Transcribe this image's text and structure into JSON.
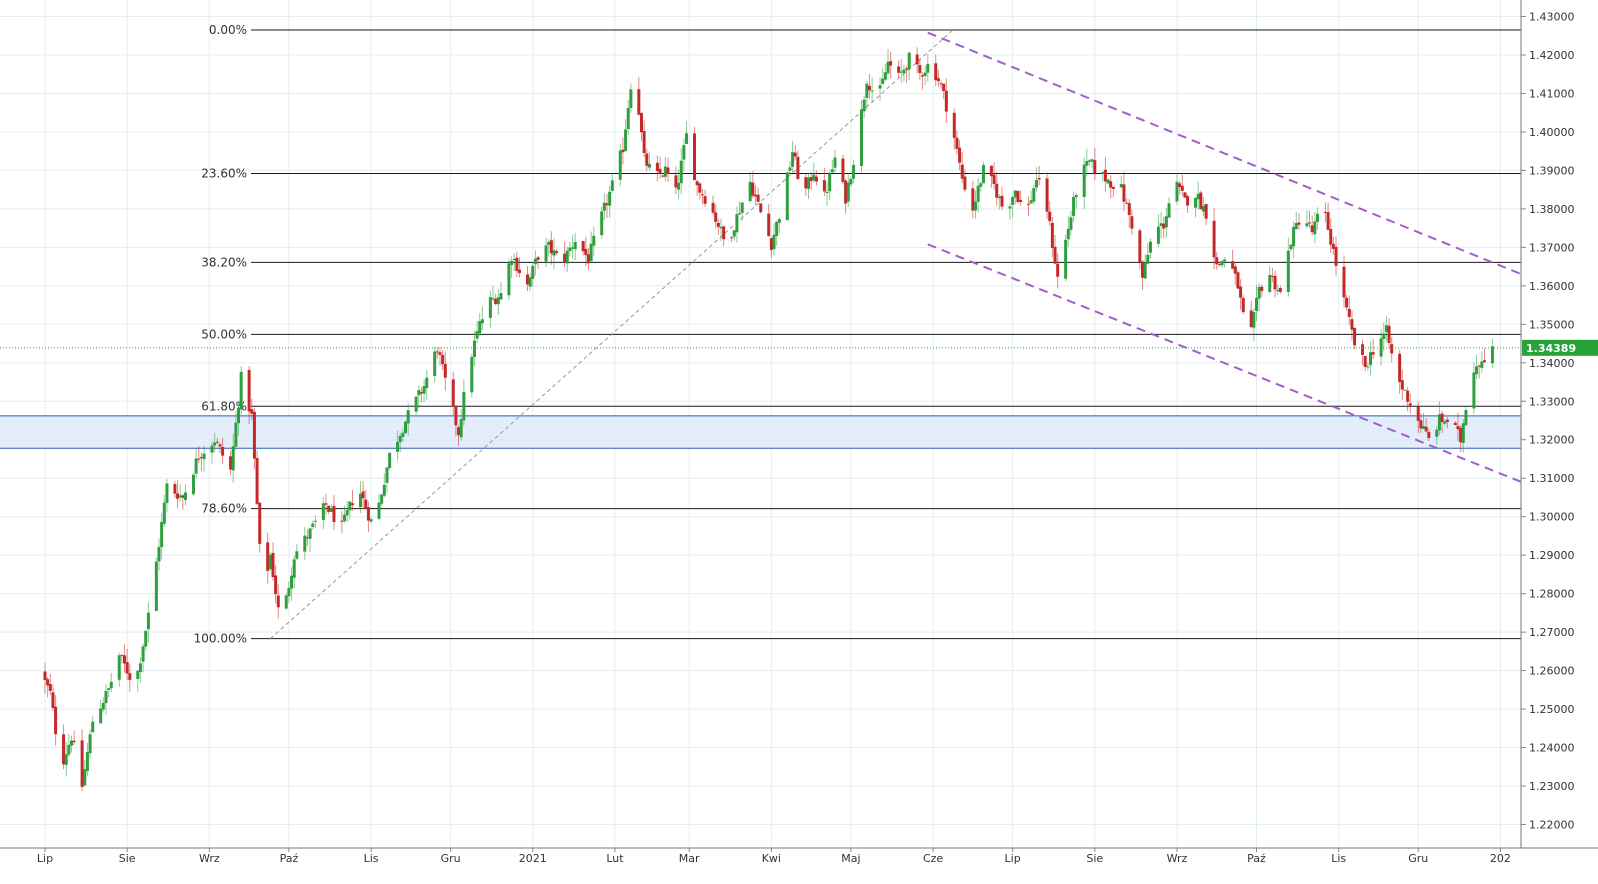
{
  "colors": {
    "up": "#2e9e3e",
    "down": "#c62828",
    "grid": "#e3eef3",
    "fib_line": "#1a1a1a",
    "zone_fill": "#dbe8f8",
    "zone_stroke": "#2a5db0",
    "channel": "#a25fc7",
    "trend_dotted": "#999999",
    "current_price": "#27a33a"
  },
  "chart_data": {
    "type": "candlestick",
    "instrument_quote_label": "1.34389",
    "current_price": 1.34389,
    "ylim": [
      1.2155,
      1.4325
    ],
    "y_ticks": [
      "1.22000",
      "1.23000",
      "1.24000",
      "1.25000",
      "1.26000",
      "1.27000",
      "1.28000",
      "1.29000",
      "1.30000",
      "1.31000",
      "1.32000",
      "1.33000",
      "1.34000",
      "1.35000",
      "1.36000",
      "1.37000",
      "1.38000",
      "1.39000",
      "1.40000",
      "1.41000",
      "1.42000",
      "1.43000"
    ],
    "months": [
      {
        "label": "Lip",
        "day": 0
      },
      {
        "label": "Sie",
        "day": 31
      },
      {
        "label": "Wrz",
        "day": 62
      },
      {
        "label": "Paź",
        "day": 92
      },
      {
        "label": "Lis",
        "day": 123
      },
      {
        "label": "Gru",
        "day": 153
      },
      {
        "label": "2021",
        "day": 184
      },
      {
        "label": "Lut",
        "day": 215
      },
      {
        "label": "Mar",
        "day": 243
      },
      {
        "label": "Kwi",
        "day": 274
      },
      {
        "label": "Maj",
        "day": 304
      },
      {
        "label": "Cze",
        "day": 335
      },
      {
        "label": "Lip",
        "day": 365
      },
      {
        "label": "Sie",
        "day": 396
      },
      {
        "label": "Wrz",
        "day": 427
      },
      {
        "label": "Paź",
        "day": 457
      },
      {
        "label": "Lis",
        "day": 488
      },
      {
        "label": "Gru",
        "day": 518
      },
      {
        "label": "202",
        "day": 549
      }
    ],
    "fib_levels": [
      {
        "label": "0.00%",
        "value": 1.4265
      },
      {
        "label": "23.60%",
        "value": 1.3892
      },
      {
        "label": "38.20%",
        "value": 1.3661
      },
      {
        "label": "50.00%",
        "value": 1.3474
      },
      {
        "label": "61.80%",
        "value": 1.3287
      },
      {
        "label": "78.60%",
        "value": 1.3021
      },
      {
        "label": "100.00%",
        "value": 1.2683
      }
    ],
    "support_zone": [
      1.3178,
      1.3262
    ],
    "channel_upper": {
      "from": [
        333,
        1.4258
      ],
      "to": [
        557,
        1.363
      ]
    },
    "channel_lower": {
      "from": [
        333,
        1.3708
      ],
      "to": [
        557,
        1.309
      ]
    },
    "trend_dotted": {
      "from": [
        85,
        1.2683
      ],
      "to": [
        342,
        1.4262
      ]
    },
    "anchors": [
      [
        -2,
        1.26
      ],
      [
        2,
        1.254
      ],
      [
        6,
        1.235
      ],
      [
        10,
        1.243
      ],
      [
        14,
        1.23
      ],
      [
        18,
        1.247
      ],
      [
        24,
        1.255
      ],
      [
        28,
        1.264
      ],
      [
        34,
        1.256
      ],
      [
        40,
        1.278
      ],
      [
        46,
        1.308
      ],
      [
        52,
        1.305
      ],
      [
        58,
        1.316
      ],
      [
        64,
        1.32
      ],
      [
        70,
        1.312
      ],
      [
        74,
        1.336
      ],
      [
        78,
        1.326
      ],
      [
        82,
        1.28
      ],
      [
        85,
        1.29
      ],
      [
        89,
        1.271
      ],
      [
        94,
        1.29
      ],
      [
        100,
        1.296
      ],
      [
        106,
        1.303
      ],
      [
        112,
        1.297
      ],
      [
        118,
        1.308
      ],
      [
        124,
        1.297
      ],
      [
        130,
        1.316
      ],
      [
        136,
        1.325
      ],
      [
        143,
        1.334
      ],
      [
        148,
        1.344
      ],
      [
        152,
        1.332
      ],
      [
        156,
        1.322
      ],
      [
        160,
        1.34
      ],
      [
        164,
        1.35
      ],
      [
        168,
        1.356
      ],
      [
        172,
        1.358
      ],
      [
        176,
        1.368
      ],
      [
        182,
        1.36
      ],
      [
        186,
        1.368
      ],
      [
        190,
        1.37
      ],
      [
        195,
        1.366
      ],
      [
        200,
        1.372
      ],
      [
        205,
        1.367
      ],
      [
        210,
        1.378
      ],
      [
        214,
        1.386
      ],
      [
        218,
        1.396
      ],
      [
        222,
        1.418
      ],
      [
        226,
        1.393
      ],
      [
        230,
        1.388
      ],
      [
        234,
        1.39
      ],
      [
        238,
        1.384
      ],
      [
        242,
        1.399
      ],
      [
        246,
        1.386
      ],
      [
        250,
        1.382
      ],
      [
        254,
        1.376
      ],
      [
        257,
        1.37
      ],
      [
        262,
        1.38
      ],
      [
        266,
        1.387
      ],
      [
        270,
        1.379
      ],
      [
        274,
        1.371
      ],
      [
        278,
        1.381
      ],
      [
        282,
        1.395
      ],
      [
        286,
        1.383
      ],
      [
        290,
        1.39
      ],
      [
        294,
        1.383
      ],
      [
        298,
        1.393
      ],
      [
        302,
        1.383
      ],
      [
        306,
        1.396
      ],
      [
        310,
        1.414
      ],
      [
        314,
        1.408
      ],
      [
        318,
        1.418
      ],
      [
        322,
        1.414
      ],
      [
        326,
        1.419
      ],
      [
        330,
        1.415
      ],
      [
        334,
        1.418
      ],
      [
        338,
        1.412
      ],
      [
        342,
        1.402
      ],
      [
        346,
        1.388
      ],
      [
        350,
        1.38
      ],
      [
        354,
        1.39
      ],
      [
        358,
        1.386
      ],
      [
        362,
        1.379
      ],
      [
        366,
        1.385
      ],
      [
        370,
        1.378
      ],
      [
        374,
        1.388
      ],
      [
        378,
        1.38
      ],
      [
        382,
        1.362
      ],
      [
        386,
        1.375
      ],
      [
        390,
        1.388
      ],
      [
        394,
        1.392
      ],
      [
        398,
        1.389
      ],
      [
        402,
        1.387
      ],
      [
        406,
        1.385
      ],
      [
        410,
        1.376
      ],
      [
        414,
        1.362
      ],
      [
        418,
        1.374
      ],
      [
        422,
        1.376
      ],
      [
        426,
        1.387
      ],
      [
        430,
        1.382
      ],
      [
        434,
        1.384
      ],
      [
        438,
        1.379
      ],
      [
        442,
        1.365
      ],
      [
        446,
        1.368
      ],
      [
        450,
        1.36
      ],
      [
        454,
        1.344
      ],
      [
        458,
        1.359
      ],
      [
        462,
        1.363
      ],
      [
        466,
        1.358
      ],
      [
        470,
        1.372
      ],
      [
        474,
        1.379
      ],
      [
        478,
        1.374
      ],
      [
        482,
        1.381
      ],
      [
        486,
        1.369
      ],
      [
        490,
        1.356
      ],
      [
        494,
        1.345
      ],
      [
        498,
        1.339
      ],
      [
        502,
        1.345
      ],
      [
        506,
        1.348
      ],
      [
        510,
        1.336
      ],
      [
        514,
        1.331
      ],
      [
        518,
        1.325
      ],
      [
        522,
        1.32
      ],
      [
        526,
        1.325
      ],
      [
        530,
        1.325
      ],
      [
        534,
        1.32
      ],
      [
        538,
        1.338
      ],
      [
        542,
        1.341
      ],
      [
        546,
        1.344
      ]
    ],
    "last_day": 546
  }
}
